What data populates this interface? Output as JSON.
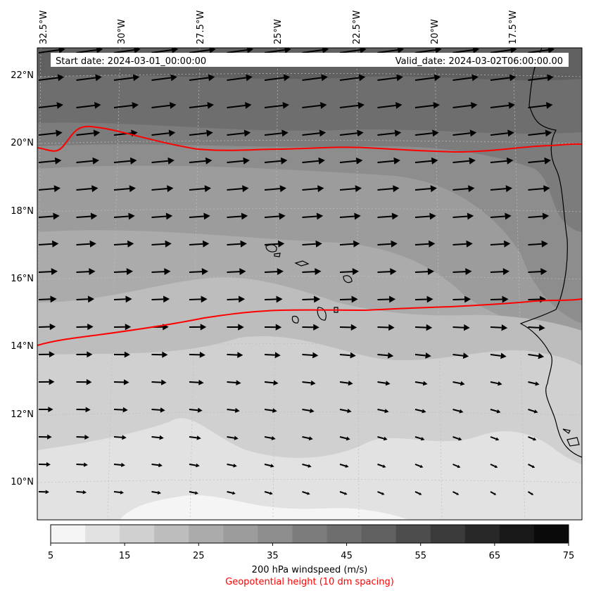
{
  "header": {
    "start_label": "Start date: 2024-03-01_00:00:00",
    "valid_label": "Valid_date: 2024-03-02T06:00:00.00"
  },
  "map": {
    "lon_labels": [
      "32.5°W",
      "30°W",
      "27.5°W",
      "25°W",
      "22.5°W",
      "20°W",
      "17.5°W"
    ],
    "lat_labels": [
      "22°N",
      "20°N",
      "18°N",
      "16°N",
      "14°N",
      "12°N",
      "10°N"
    ],
    "geopotential_contour_color": "#ff0000",
    "coastline_color": "#000000",
    "wind_vector_color": "#000000",
    "shading_bands": [
      {
        "speed_range": [
          50,
          55
        ],
        "color": "#606060"
      },
      {
        "speed_range": [
          45,
          50
        ],
        "color": "#6e6e6e"
      },
      {
        "speed_range": [
          40,
          45
        ],
        "color": "#7c7c7c"
      },
      {
        "speed_range": [
          35,
          40
        ],
        "color": "#8d8d8d"
      },
      {
        "speed_range": [
          30,
          35
        ],
        "color": "#9c9c9c"
      },
      {
        "speed_range": [
          25,
          30
        ],
        "color": "#ababab"
      },
      {
        "speed_range": [
          20,
          25
        ],
        "color": "#bdbdbd"
      },
      {
        "speed_range": [
          15,
          20
        ],
        "color": "#d0d0d0"
      },
      {
        "speed_range": [
          10,
          15
        ],
        "color": "#e2e2e2"
      },
      {
        "speed_range": [
          5,
          10
        ],
        "color": "#f5f5f5"
      }
    ]
  },
  "colorbar": {
    "ticks": [
      "5",
      "15",
      "25",
      "35",
      "45",
      "55",
      "65",
      "75"
    ],
    "colors": [
      "#f5f5f5",
      "#e2e2e2",
      "#d0d0d0",
      "#bdbdbd",
      "#ababab",
      "#9c9c9c",
      "#8d8d8d",
      "#7c7c7c",
      "#6e6e6e",
      "#606060",
      "#4d4d4d",
      "#3b3b3b",
      "#282828",
      "#181818",
      "#0a0a0a"
    ],
    "title": "200 hPa windspeed (m/s)",
    "subtitle": "Geopotential height (10 dm spacing)",
    "subtitle_color": "#ff0000"
  }
}
